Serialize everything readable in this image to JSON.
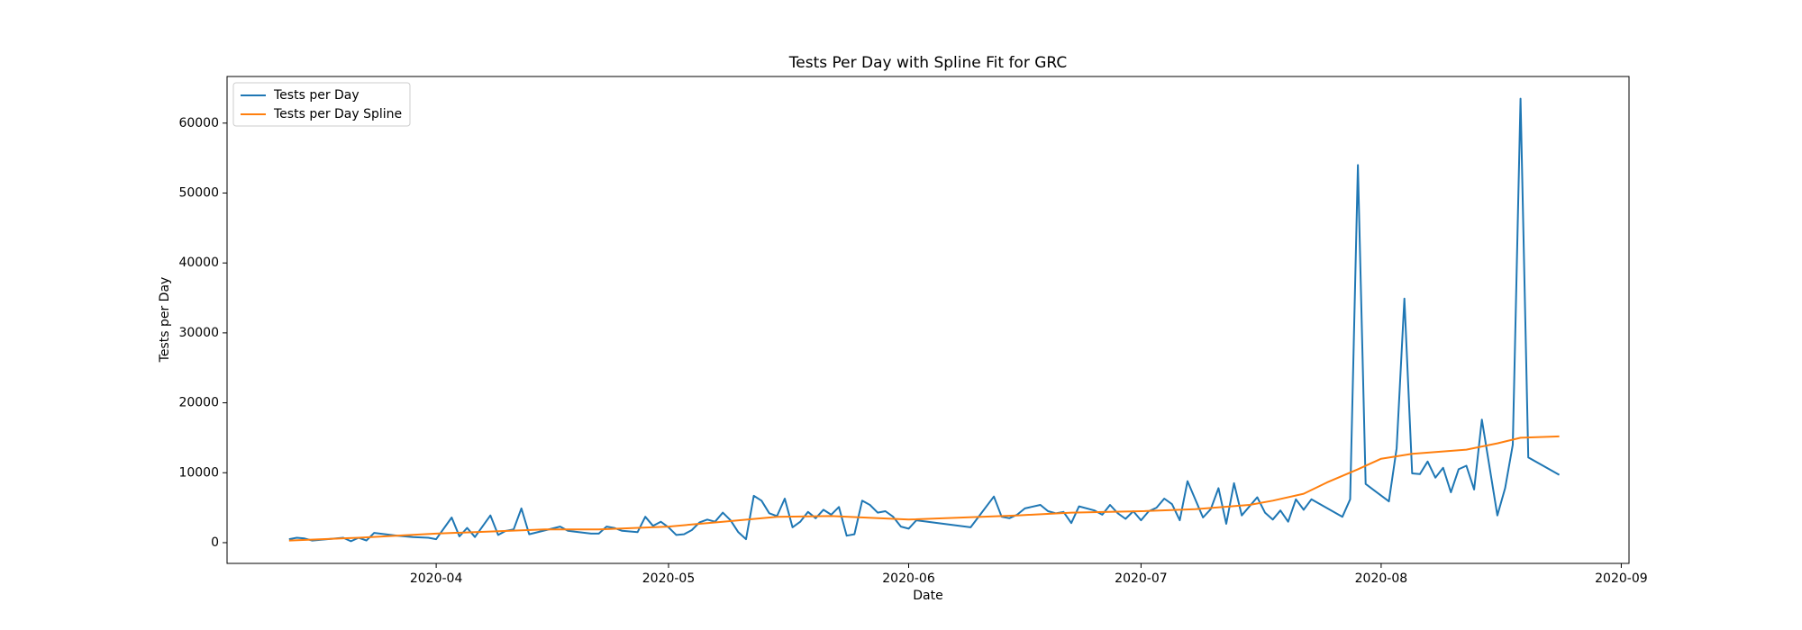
{
  "chart_data": {
    "type": "line",
    "title": "Tests Per Day with Spline Fit for GRC",
    "x_label": "Date",
    "y_label": "Tests per Day",
    "xlim": [
      "2020-03-05",
      "2020-09-02"
    ],
    "xticks": [
      {
        "value": "2020-04-01",
        "label": "2020-04"
      },
      {
        "value": "2020-05-01",
        "label": "2020-05"
      },
      {
        "value": "2020-06-01",
        "label": "2020-06"
      },
      {
        "value": "2020-07-01",
        "label": "2020-07"
      },
      {
        "value": "2020-08-01",
        "label": "2020-08"
      },
      {
        "value": "2020-09-01",
        "label": "2020-09"
      }
    ],
    "ylim": [
      -2965,
      66665
    ],
    "yticks": [
      0,
      10000,
      20000,
      30000,
      40000,
      50000,
      60000
    ],
    "legend": "upper left",
    "series": [
      {
        "name": "Tests per Day",
        "color": "#1f77b4",
        "x": [
          "2020-03-13",
          "2020-03-14",
          "2020-03-15",
          "2020-03-16",
          "2020-03-20",
          "2020-03-21",
          "2020-03-22",
          "2020-03-23",
          "2020-03-24",
          "2020-03-27",
          "2020-03-29",
          "2020-03-31",
          "2020-04-01",
          "2020-04-03",
          "2020-04-04",
          "2020-04-05",
          "2020-04-06",
          "2020-04-08",
          "2020-04-09",
          "2020-04-10",
          "2020-04-11",
          "2020-04-12",
          "2020-04-13",
          "2020-04-17",
          "2020-04-18",
          "2020-04-21",
          "2020-04-22",
          "2020-04-23",
          "2020-04-24",
          "2020-04-25",
          "2020-04-27",
          "2020-04-28",
          "2020-04-29",
          "2020-04-30",
          "2020-05-01",
          "2020-05-02",
          "2020-05-03",
          "2020-05-04",
          "2020-05-05",
          "2020-05-06",
          "2020-05-07",
          "2020-05-08",
          "2020-05-09",
          "2020-05-10",
          "2020-05-11",
          "2020-05-12",
          "2020-05-13",
          "2020-05-14",
          "2020-05-15",
          "2020-05-16",
          "2020-05-17",
          "2020-05-18",
          "2020-05-19",
          "2020-05-20",
          "2020-05-21",
          "2020-05-22",
          "2020-05-23",
          "2020-05-24",
          "2020-05-25",
          "2020-05-26",
          "2020-05-27",
          "2020-05-28",
          "2020-05-29",
          "2020-05-30",
          "2020-05-31",
          "2020-06-01",
          "2020-06-02",
          "2020-06-09",
          "2020-06-12",
          "2020-06-13",
          "2020-06-14",
          "2020-06-15",
          "2020-06-16",
          "2020-06-18",
          "2020-06-19",
          "2020-06-20",
          "2020-06-21",
          "2020-06-22",
          "2020-06-23",
          "2020-06-25",
          "2020-06-26",
          "2020-06-27",
          "2020-06-28",
          "2020-06-29",
          "2020-06-30",
          "2020-07-01",
          "2020-07-02",
          "2020-07-03",
          "2020-07-04",
          "2020-07-05",
          "2020-07-06",
          "2020-07-07",
          "2020-07-09",
          "2020-07-10",
          "2020-07-11",
          "2020-07-12",
          "2020-07-13",
          "2020-07-14",
          "2020-07-16",
          "2020-07-17",
          "2020-07-18",
          "2020-07-19",
          "2020-07-20",
          "2020-07-21",
          "2020-07-22",
          "2020-07-23",
          "2020-07-27",
          "2020-07-28",
          "2020-07-29",
          "2020-07-30",
          "2020-08-02",
          "2020-08-03",
          "2020-08-04",
          "2020-08-05",
          "2020-08-06",
          "2020-08-07",
          "2020-08-08",
          "2020-08-09",
          "2020-08-10",
          "2020-08-11",
          "2020-08-12",
          "2020-08-13",
          "2020-08-14",
          "2020-08-16",
          "2020-08-17",
          "2020-08-18",
          "2020-08-19",
          "2020-08-20",
          "2020-08-24"
        ],
        "values": [
          500,
          700,
          600,
          300,
          700,
          200,
          700,
          300,
          1400,
          1000,
          800,
          700,
          500,
          3600,
          900,
          2100,
          800,
          3900,
          1100,
          1700,
          1900,
          4900,
          1200,
          2300,
          1700,
          1300,
          1300,
          2300,
          2100,
          1700,
          1500,
          3700,
          2400,
          3000,
          2200,
          1100,
          1200,
          1800,
          2900,
          3300,
          3000,
          4300,
          3200,
          1500,
          500,
          6700,
          6000,
          4200,
          3800,
          6300,
          2200,
          3000,
          4400,
          3500,
          4700,
          4000,
          5100,
          1000,
          1200,
          6000,
          5400,
          4300,
          4500,
          3700,
          2300,
          2000,
          3200,
          2200,
          6600,
          3700,
          3500,
          4000,
          4900,
          5400,
          4500,
          4200,
          4400,
          2800,
          5200,
          4600,
          4000,
          5400,
          4200,
          3400,
          4500,
          3200,
          4500,
          5000,
          6300,
          5500,
          3200,
          8800,
          3600,
          4800,
          7800,
          2700,
          8500,
          3900,
          6500,
          4300,
          3300,
          4600,
          3000,
          6200,
          4700,
          6200,
          3700,
          6200,
          54000,
          8400,
          5900,
          13500,
          34900,
          9900,
          9800,
          11600,
          9300,
          10700,
          7200,
          10500,
          11000,
          7600,
          17600,
          3900,
          7800,
          14000,
          63500,
          12200,
          9700
        ]
      },
      {
        "name": "Tests per Day Spline",
        "color": "#ff7f0e",
        "x": [
          "2020-03-13",
          "2020-03-22",
          "2020-04-01",
          "2020-04-15",
          "2020-04-22",
          "2020-05-01",
          "2020-05-08",
          "2020-05-15",
          "2020-05-22",
          "2020-06-01",
          "2020-06-15",
          "2020-06-22",
          "2020-07-01",
          "2020-07-08",
          "2020-07-15",
          "2020-07-18",
          "2020-07-22",
          "2020-07-25",
          "2020-07-29",
          "2020-08-01",
          "2020-08-05",
          "2020-08-12",
          "2020-08-16",
          "2020-08-19",
          "2020-08-24"
        ],
        "values": [
          300,
          700,
          1300,
          1900,
          1900,
          2300,
          3000,
          3700,
          3800,
          3300,
          3900,
          4300,
          4500,
          4800,
          5400,
          6000,
          7000,
          8600,
          10500,
          12000,
          12700,
          13300,
          14200,
          15000,
          15200
        ]
      }
    ]
  }
}
